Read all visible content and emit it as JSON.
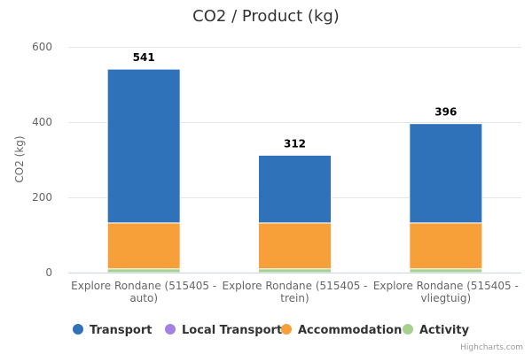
{
  "chart_data": {
    "type": "bar",
    "stacked": true,
    "title": "CO2 / Product (kg)",
    "xlabel": "",
    "ylabel": "CO2 (kg)",
    "ylim": [
      0,
      600
    ],
    "yticks": [
      0,
      200,
      400,
      600
    ],
    "grid": true,
    "legend_position": "bottom",
    "categories": [
      [
        "Explore Rondane (515405 -",
        "auto)"
      ],
      [
        "Explore Rondane (515405 -",
        "trein)"
      ],
      [
        "Explore Rondane (515405 -",
        "vliegtuig)"
      ]
    ],
    "series": [
      {
        "name": "Activity",
        "color": "#a5d08f",
        "values": [
          10,
          10,
          10
        ]
      },
      {
        "name": "Accommodation",
        "color": "#f7a03a",
        "values": [
          122,
          122,
          122
        ]
      },
      {
        "name": "Local Transport",
        "color": "#a482e3",
        "values": [
          0,
          0,
          0
        ]
      },
      {
        "name": "Transport",
        "color": "#2f72b9",
        "values": [
          409,
          180,
          264
        ]
      }
    ],
    "totals": [
      541,
      312,
      396
    ],
    "legend_order": [
      "Transport",
      "Local Transport",
      "Accommodation",
      "Activity"
    ],
    "credits": "Highcharts.com"
  }
}
